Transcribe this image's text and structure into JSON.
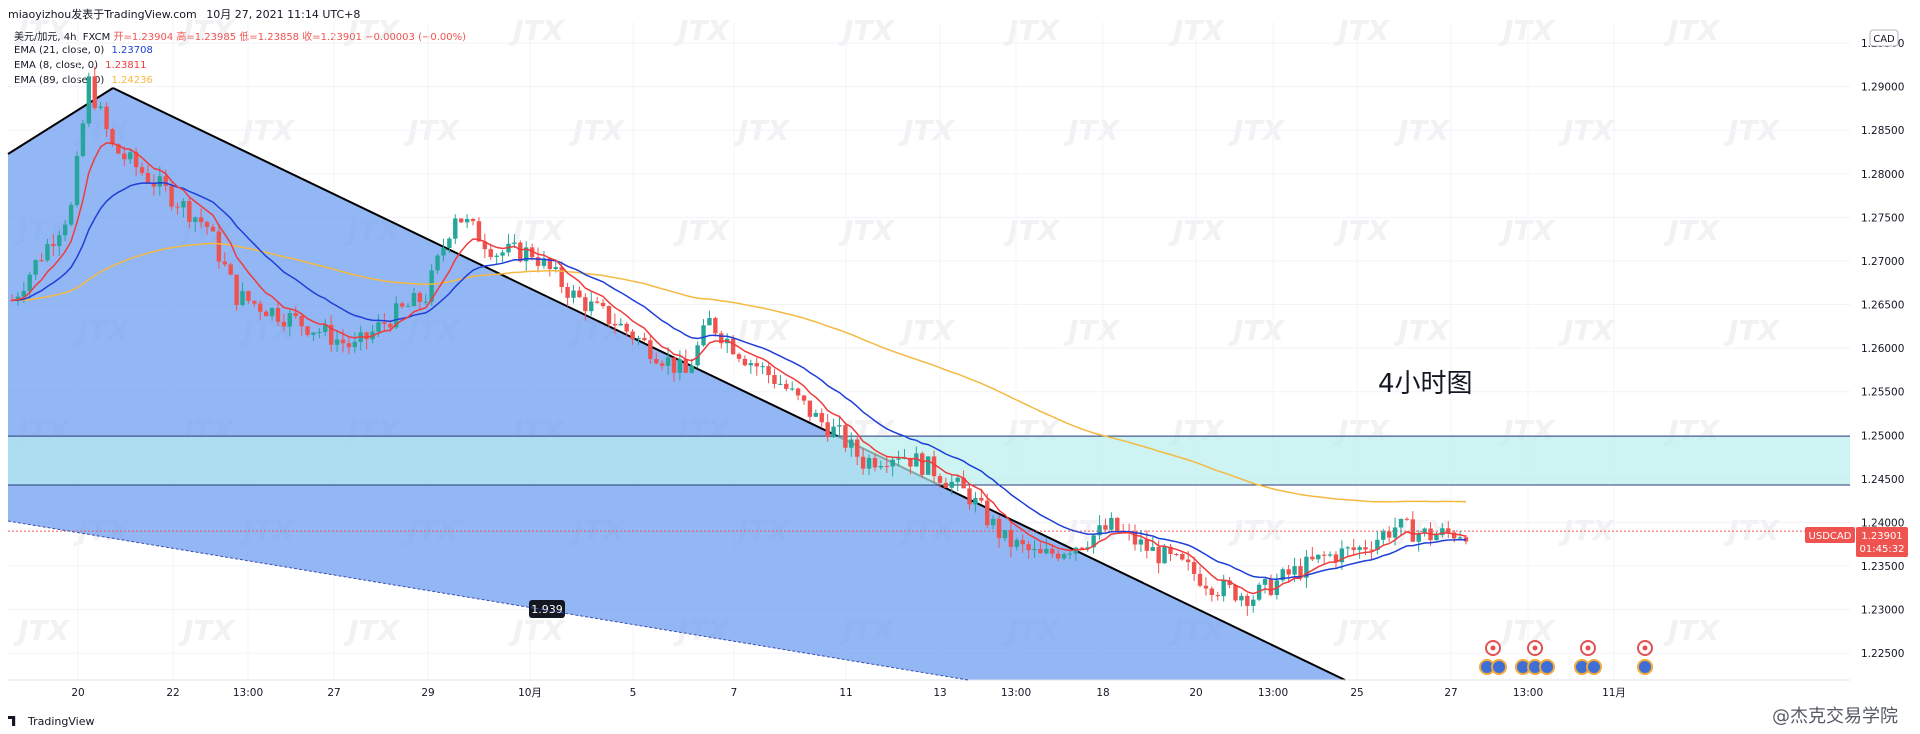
{
  "header": {
    "author": "miaoyizhou发表于TradingView.com",
    "timestamp": "10月 27, 2021 11:14 UTC+8"
  },
  "legend": {
    "symbol": "美元/加元, 4h, FXCM",
    "open": "开=1.23904",
    "high": "高=1.23985",
    "low": "低=1.23858",
    "close": "收=1.23901",
    "change": "−0.00003 (−0.00%)",
    "ema21_label": "EMA (21, close, 0)",
    "ema21_value": "1.23708",
    "ema8_label": "EMA (8, close, 0)",
    "ema8_value": "1.23811",
    "ema89_label": "EMA (89, close, 0)",
    "ema89_value": "1.24236"
  },
  "colors": {
    "up": "#26a69a",
    "down": "#ef5350",
    "ema8": "#ef3b3b",
    "ema21": "#1e3fd8",
    "ema89": "#f5b942",
    "triangle": "#6f9ef0",
    "zone": "#b8eeee",
    "axis_text": "#131722"
  },
  "chart_data": {
    "type": "candlestick",
    "symbol": "USDCAD",
    "currency": "CAD",
    "price_label": "USDCAD",
    "last_price": 1.23901,
    "last_price_label": "1.23901",
    "countdown": "01:45:32",
    "annotation": "4小时图",
    "box_label": "1.939",
    "ylim": [
      1.2225,
      1.2965
    ],
    "yticks": [
      "1.29500",
      "1.29000",
      "1.28500",
      "1.28000",
      "1.27500",
      "1.27000",
      "1.26500",
      "1.26000",
      "1.25500",
      "1.25000",
      "1.24500",
      "1.24000",
      "1.23500",
      "1.23000",
      "1.22500"
    ],
    "xticks": [
      "20",
      "22",
      "13:00",
      "27",
      "29",
      "10月",
      "5",
      "7",
      "11",
      "13",
      "13:00",
      "18",
      "20",
      "13:00",
      "25",
      "27",
      "13:00",
      "11月"
    ],
    "zone": [
      1.2443,
      1.2499
    ],
    "series": [
      {
        "name": "EMA (8, close, 0)",
        "last": 1.23811
      },
      {
        "name": "EMA (21, close, 0)",
        "last": 1.23708
      },
      {
        "name": "EMA (89, close, 0)",
        "last": 1.24236
      }
    ]
  },
  "credit": "@杰克交易学院"
}
